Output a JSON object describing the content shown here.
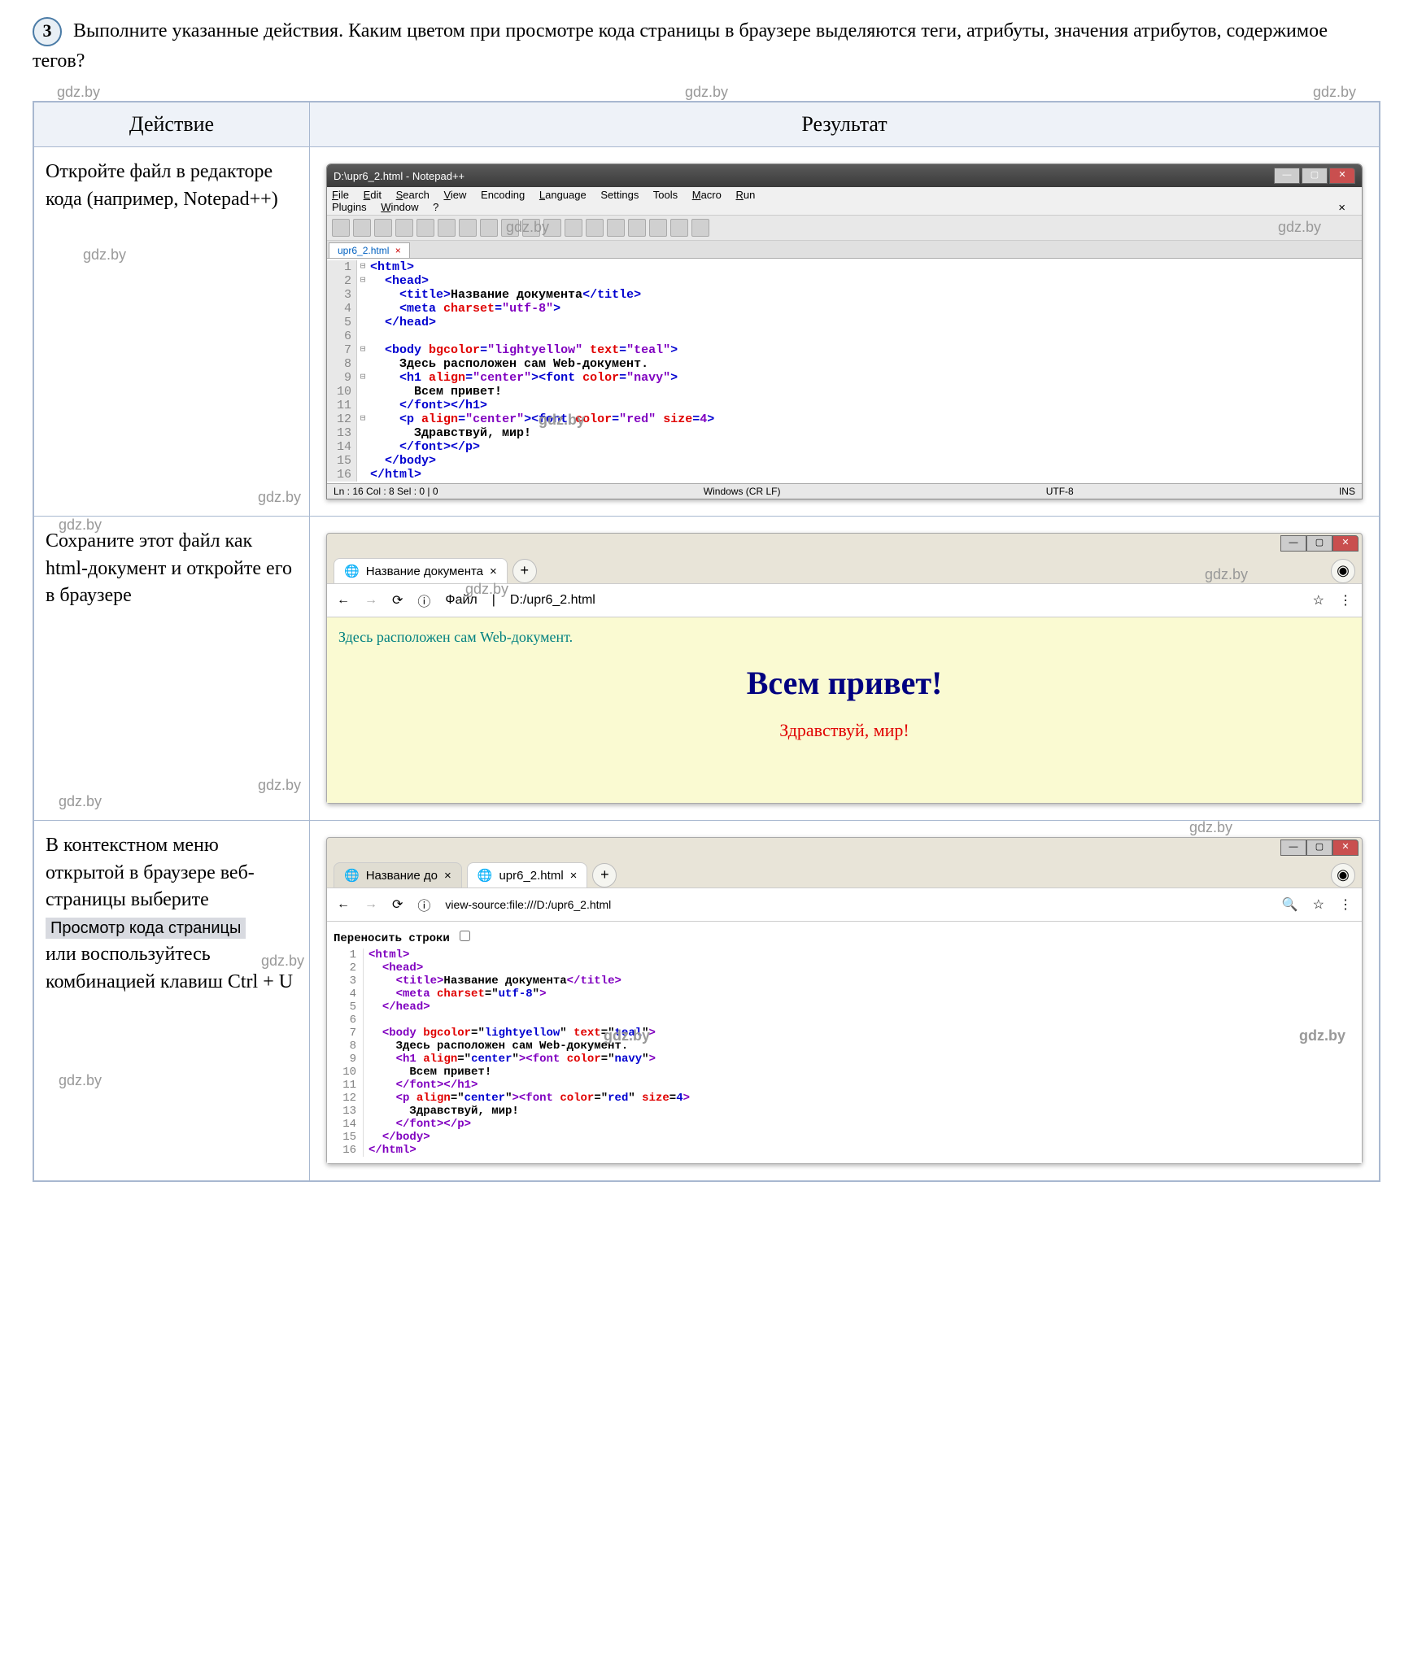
{
  "question": {
    "number": "3",
    "text": "Выполните указанные действия. Каким цветом при просмотре кода страницы в браузере выделяются теги, атрибуты, значения атрибутов, содержимое тегов?"
  },
  "watermark": "gdz.by",
  "table": {
    "headers": [
      "Действие",
      "Результат"
    ]
  },
  "rows": [
    {
      "action": "Откройте файл в редакторе кода (например, Notepad++)"
    },
    {
      "action": "Сохраните этот файл как html-документ и откройте его в браузере"
    },
    {
      "action_parts": {
        "p1": "В контекстном меню открытой в браузере веб-страницы выберите",
        "button": "Просмотр кода страницы",
        "p2": "или воспользуйтесь комбинацией клавиш Ctrl + U"
      }
    }
  ],
  "notepad": {
    "title": "D:\\upr6_2.html - Notepad++",
    "menu": [
      "File",
      "Edit",
      "Search",
      "View",
      "Encoding",
      "Language",
      "Settings",
      "Tools",
      "Macro",
      "Run",
      "Plugins",
      "Window",
      "?"
    ],
    "tab": "upr6_2.html",
    "close_x": "×",
    "status": {
      "pos": "Ln : 16    Col : 8    Sel : 0 | 0",
      "enc": "Windows (CR LF)",
      "utf": "UTF-8",
      "ins": "INS"
    },
    "code": [
      {
        "n": 1,
        "fold": "⊟",
        "html": "<span class='tag'>&lt;html&gt;</span>"
      },
      {
        "n": 2,
        "fold": "⊟",
        "html": "  <span class='tag'>&lt;head&gt;</span>"
      },
      {
        "n": 3,
        "fold": "",
        "html": "    <span class='tag'>&lt;title&gt;</span><span class='txt'>Название документа</span><span class='tag'>&lt;/title&gt;</span>"
      },
      {
        "n": 4,
        "fold": "",
        "html": "    <span class='tag'>&lt;meta</span> <span class='attr'>charset</span><span class='tag'>=</span><span class='val'>\"utf-8\"</span><span class='tag'>&gt;</span>"
      },
      {
        "n": 5,
        "fold": "",
        "html": "  <span class='tag'>&lt;/head&gt;</span>"
      },
      {
        "n": 6,
        "fold": "",
        "html": ""
      },
      {
        "n": 7,
        "fold": "⊟",
        "html": "  <span class='tag'>&lt;body</span> <span class='attr'>bgcolor</span><span class='tag'>=</span><span class='val'>\"lightyellow\"</span> <span class='attr'>text</span><span class='tag'>=</span><span class='val'>\"teal\"</span><span class='tag'>&gt;</span>"
      },
      {
        "n": 8,
        "fold": "",
        "html": "    <span class='txt'>Здесь расположен сам Web-документ.</span>"
      },
      {
        "n": 9,
        "fold": "⊟",
        "html": "    <span class='tag'>&lt;h1</span> <span class='attr'>align</span><span class='tag'>=</span><span class='val'>\"center\"</span><span class='tag'>&gt;&lt;font</span> <span class='attr'>color</span><span class='tag'>=</span><span class='val'>\"navy\"</span><span class='tag'>&gt;</span>"
      },
      {
        "n": 10,
        "fold": "",
        "html": "      <span class='txt'>Всем привет!</span>"
      },
      {
        "n": 11,
        "fold": "",
        "html": "    <span class='tag'>&lt;/font&gt;&lt;/h1&gt;</span>"
      },
      {
        "n": 12,
        "fold": "⊟",
        "html": "    <span class='tag'>&lt;p</span> <span class='attr'>align</span><span class='tag'>=</span><span class='val'>\"center\"</span><span class='tag'>&gt;&lt;font</span> <span class='attr'>color</span><span class='tag'>=</span><span class='val'>\"red\"</span> <span class='attr'>size</span><span class='tag'>=</span><span class='val'>4</span><span class='tag'>&gt;</span>"
      },
      {
        "n": 13,
        "fold": "",
        "html": "      <span class='txt'>Здравствуй, мир!</span>"
      },
      {
        "n": 14,
        "fold": "",
        "html": "    <span class='tag'>&lt;/font&gt;&lt;/p&gt;</span>"
      },
      {
        "n": 15,
        "fold": "",
        "html": "  <span class='tag'>&lt;/body&gt;</span>"
      },
      {
        "n": 16,
        "fold": "",
        "html": "<span class='tag'>&lt;/html&gt;</span>"
      }
    ]
  },
  "browser1": {
    "tab_title": "Название документа",
    "addr_label": "Файл",
    "addr_url": "D:/upr6_2.html",
    "body_text": "Здесь расположен сам Web-документ.",
    "h1": "Всем привет!",
    "p": "Здравствуй, мир!"
  },
  "browser2": {
    "tab1": "Название до",
    "tab2": "upr6_2.html",
    "addr_url": "view-source:file:///D:/upr6_2.html",
    "wrap_label": "Переносить строки",
    "code": [
      {
        "n": 1,
        "html": "<span class='src-tag'>&lt;html&gt;</span>"
      },
      {
        "n": 2,
        "html": "  <span class='src-tag'>&lt;head&gt;</span>"
      },
      {
        "n": 3,
        "html": "    <span class='src-tag'>&lt;title&gt;</span>Название документа<span class='src-tag'>&lt;/title&gt;</span>"
      },
      {
        "n": 4,
        "html": "    <span class='src-tag'>&lt;meta</span> <span class='src-attr'>charset</span>=\"<span class='src-val'>utf-8</span>\"<span class='src-tag'>&gt;</span>"
      },
      {
        "n": 5,
        "html": "  <span class='src-tag'>&lt;/head&gt;</span>"
      },
      {
        "n": 6,
        "html": ""
      },
      {
        "n": 7,
        "html": "  <span class='src-tag'>&lt;body</span> <span class='src-attr'>bgcolor</span>=\"<span class='src-val'>lightyellow</span>\" <span class='src-attr'>text</span>=\"<span class='src-val'>teal</span>\"<span class='src-tag'>&gt;</span>"
      },
      {
        "n": 8,
        "html": "    Здесь расположен сам Web-документ."
      },
      {
        "n": 9,
        "html": "    <span class='src-tag'>&lt;h1</span> <span class='src-attr'>align</span>=\"<span class='src-val'>center</span>\"<span class='src-tag'>&gt;&lt;font</span> <span class='src-attr'>color</span>=\"<span class='src-val'>navy</span>\"<span class='src-tag'>&gt;</span>"
      },
      {
        "n": 10,
        "html": "      Всем привет!"
      },
      {
        "n": 11,
        "html": "    <span class='src-tag'>&lt;/font&gt;&lt;/h1&gt;</span>"
      },
      {
        "n": 12,
        "html": "    <span class='src-tag'>&lt;p</span> <span class='src-attr'>align</span>=\"<span class='src-val'>center</span>\"<span class='src-tag'>&gt;&lt;font</span> <span class='src-attr'>color</span>=\"<span class='src-val'>red</span>\" <span class='src-attr'>size</span>=<span class='src-val'>4</span><span class='src-tag'>&gt;</span>"
      },
      {
        "n": 13,
        "html": "      Здравствуй, мир!"
      },
      {
        "n": 14,
        "html": "    <span class='src-tag'>&lt;/font&gt;&lt;/p&gt;</span>"
      },
      {
        "n": 15,
        "html": "  <span class='src-tag'>&lt;/body&gt;</span>"
      },
      {
        "n": 16,
        "html": "<span class='src-tag'>&lt;/html&gt;</span>"
      }
    ]
  },
  "colors": {
    "tag": "#0000d0",
    "attr": "#e00000",
    "val": "#8000c0",
    "src_tag": "#8000c0",
    "src_attr": "#e00000",
    "src_val": "#0000d0",
    "page_bg": "#fafad2",
    "teal": "#008080",
    "navy": "#000080",
    "red": "#e00000"
  }
}
